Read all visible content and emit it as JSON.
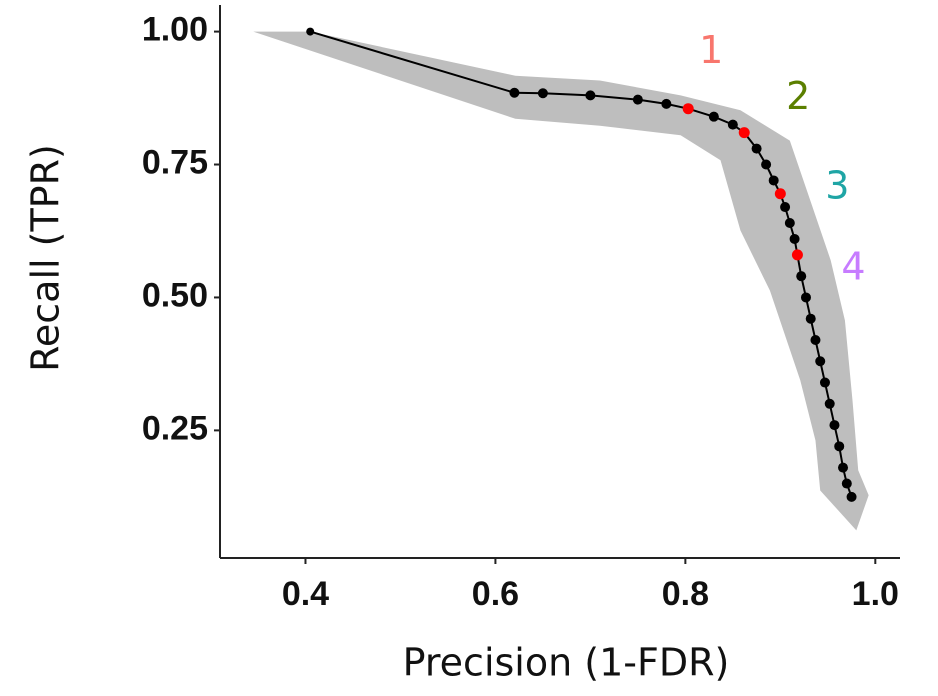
{
  "chart_data": {
    "type": "scatter",
    "xlabel": "Precision (1-FDR)",
    "ylabel": "Recall (TPR)",
    "xlim": [
      0.31,
      1.026
    ],
    "ylim": [
      0.01,
      1.05
    ],
    "xticks": [
      0.4,
      0.6,
      0.8,
      {
        "value": 1.0,
        "label": "1.0"
      }
    ],
    "yticks": [
      {
        "value": 0.25,
        "label": "0.25"
      },
      {
        "value": 0.5,
        "label": "0.50"
      },
      {
        "value": 0.75,
        "label": "0.75"
      },
      {
        "value": 1.0,
        "label": "1.00"
      }
    ],
    "band": {
      "color": "#bebebe",
      "outer_x": [
        0.345,
        0.405,
        0.621,
        0.71,
        0.795,
        0.858,
        0.91,
        0.932,
        0.953,
        0.968,
        0.976,
        0.982,
        0.993
      ],
      "outer_y": [
        1.0,
        1.0,
        0.917,
        0.908,
        0.88,
        0.852,
        0.795,
        0.68,
        0.57,
        0.457,
        0.306,
        0.175,
        0.128
      ],
      "inner_x": [
        0.345,
        0.621,
        0.71,
        0.795,
        0.837,
        0.858,
        0.889,
        0.921,
        0.937,
        0.942,
        0.98
      ],
      "inner_y": [
        1.0,
        0.836,
        0.823,
        0.805,
        0.758,
        0.626,
        0.513,
        0.344,
        0.231,
        0.137,
        0.062
      ]
    },
    "curve": {
      "color": "#000000",
      "x": [
        0.405,
        0.62,
        0.65,
        0.7,
        0.75,
        0.78,
        0.803,
        0.83,
        0.85,
        0.862,
        0.875,
        0.885,
        0.893,
        0.9,
        0.905,
        0.91,
        0.915,
        0.918,
        0.922,
        0.927,
        0.932,
        0.937,
        0.942,
        0.947,
        0.952,
        0.957,
        0.962,
        0.966,
        0.97,
        0.975
      ],
      "y": [
        1.0,
        0.885,
        0.884,
        0.88,
        0.872,
        0.864,
        0.855,
        0.84,
        0.825,
        0.81,
        0.78,
        0.75,
        0.72,
        0.695,
        0.67,
        0.64,
        0.61,
        0.58,
        0.54,
        0.5,
        0.46,
        0.42,
        0.38,
        0.34,
        0.3,
        0.26,
        0.22,
        0.18,
        0.15,
        0.125
      ]
    },
    "highlights": {
      "color": "#ff0000",
      "labels": [
        "1",
        "2",
        "3",
        "4"
      ],
      "label_colors": [
        "#f8766d",
        "#5b7f00",
        "#1fa5a5",
        "#c77cff"
      ],
      "x": [
        0.803,
        0.862,
        0.9,
        0.918
      ],
      "y": [
        0.855,
        0.81,
        0.695,
        0.58
      ]
    }
  }
}
